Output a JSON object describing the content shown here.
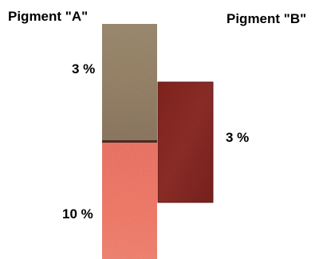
{
  "pigment_a": {
    "title": "Pigment \"A\"",
    "top_swatch": {
      "percent_label": "3 %",
      "color": "#9e8a6c"
    },
    "bottom_swatch": {
      "percent_label": "10 %",
      "color": "#e85a3e"
    }
  },
  "pigment_b": {
    "title": "Pigment \"B\"",
    "swatch": {
      "percent_label": "3 %",
      "color": "#8e2a22"
    }
  }
}
